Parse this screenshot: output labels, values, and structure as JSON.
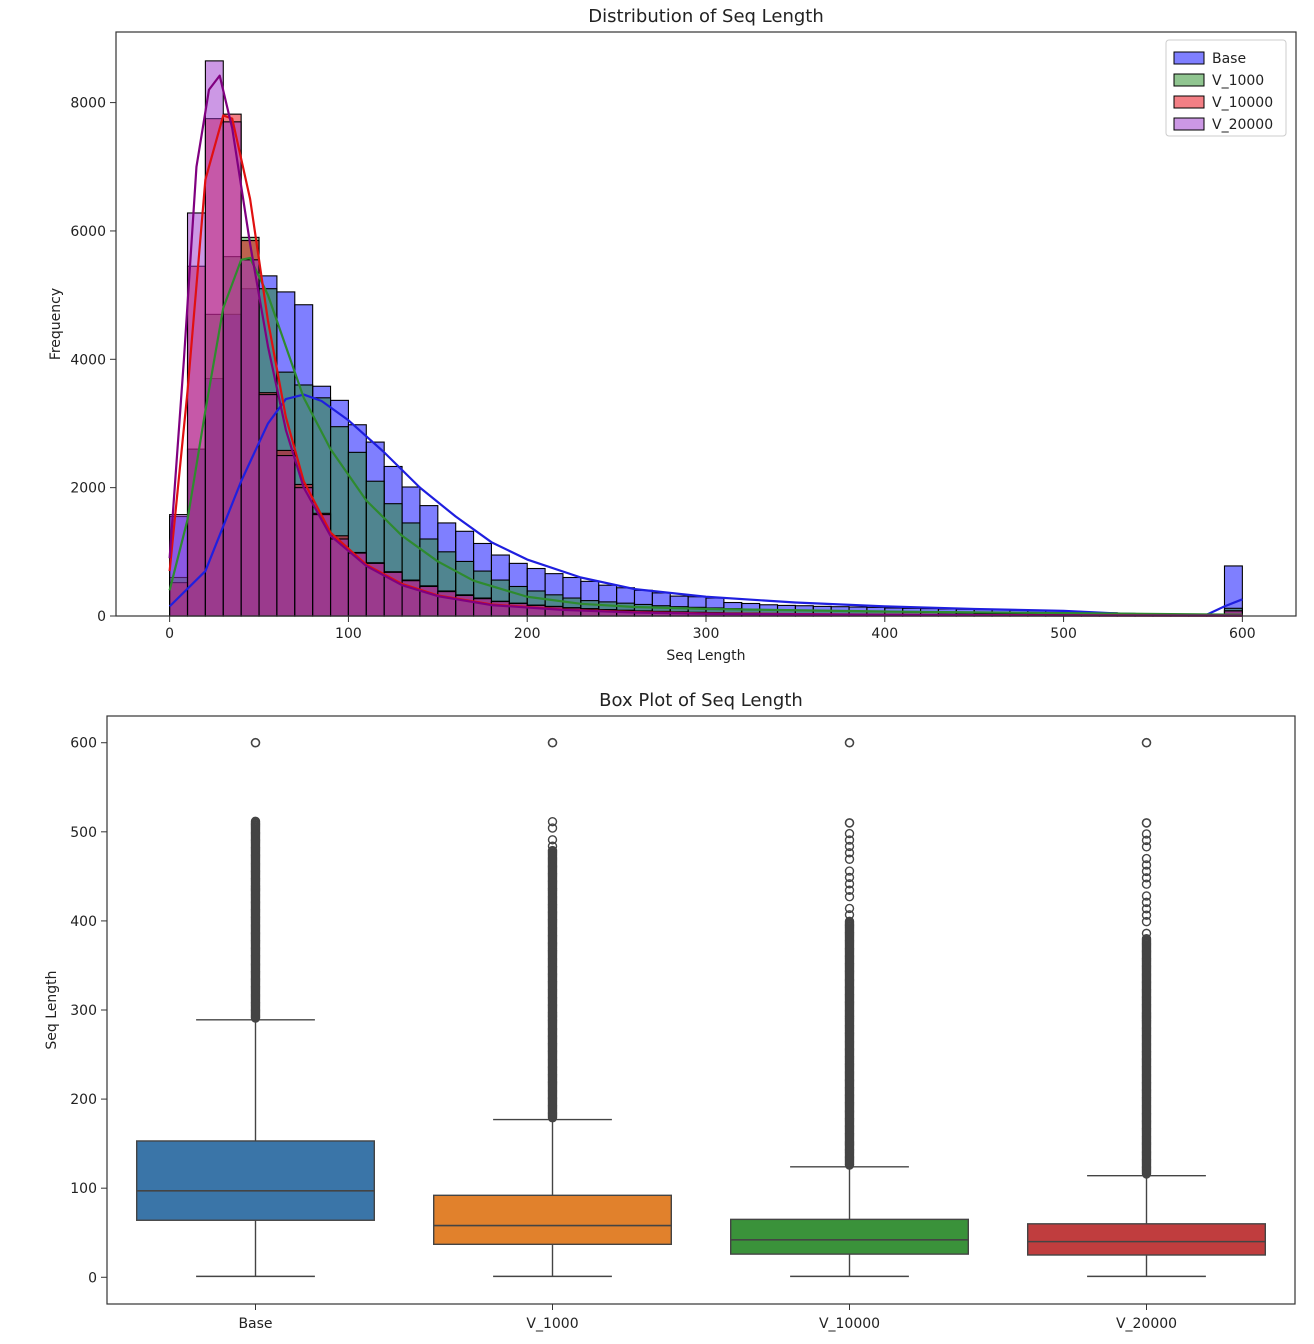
{
  "chart_data": [
    {
      "type": "histogram",
      "title": "Distribution of Seq Length",
      "xlabel": "Seq Length",
      "ylabel": "Frequency",
      "xlim": [
        -30,
        630
      ],
      "ylim": [
        0,
        9100
      ],
      "xticks": [
        0,
        100,
        200,
        300,
        400,
        500,
        600
      ],
      "yticks": [
        0,
        2000,
        4000,
        6000,
        8000
      ],
      "bin_width": 10,
      "bin_start": 0,
      "legend_position": "upper right",
      "series": [
        {
          "name": "Base",
          "color": "#0000ff",
          "line_color": "#1f1fdf",
          "values": [
            1550,
            2600,
            3700,
            4700,
            5100,
            5300,
            5050,
            4850,
            3580,
            3360,
            2980,
            2710,
            2330,
            2010,
            1720,
            1450,
            1320,
            1130,
            950,
            820,
            740,
            660,
            600,
            540,
            480,
            440,
            400,
            360,
            310,
            300,
            280,
            210,
            195,
            175,
            165,
            160,
            150,
            145,
            140,
            135,
            125,
            120,
            115,
            110,
            105,
            100,
            95,
            90,
            85,
            80,
            70,
            60,
            50,
            40,
            30,
            25,
            20,
            20,
            20,
            780
          ],
          "kde": [
            [
              0,
              150
            ],
            [
              20,
              700
            ],
            [
              40,
              2100
            ],
            [
              55,
              3000
            ],
            [
              65,
              3380
            ],
            [
              75,
              3450
            ],
            [
              85,
              3350
            ],
            [
              100,
              3050
            ],
            [
              120,
              2550
            ],
            [
              140,
              2000
            ],
            [
              160,
              1550
            ],
            [
              180,
              1150
            ],
            [
              200,
              880
            ],
            [
              230,
              600
            ],
            [
              260,
              420
            ],
            [
              300,
              300
            ],
            [
              350,
              210
            ],
            [
              400,
              150
            ],
            [
              450,
              110
            ],
            [
              500,
              80
            ],
            [
              530,
              40
            ],
            [
              560,
              10
            ],
            [
              580,
              20
            ],
            [
              590,
              150
            ],
            [
              600,
              260
            ]
          ]
        },
        {
          "name": "V_1000",
          "color": "#228b22",
          "line_color": "#2e8b2e",
          "values": [
            600,
            2600,
            4700,
            5600,
            5900,
            5100,
            3800,
            3600,
            3400,
            2950,
            2550,
            2100,
            1750,
            1450,
            1200,
            1000,
            850,
            700,
            560,
            460,
            390,
            330,
            280,
            240,
            220,
            200,
            180,
            160,
            145,
            135,
            125,
            115,
            105,
            100,
            95,
            90,
            85,
            80,
            75,
            70,
            65,
            60,
            55,
            50,
            45,
            40,
            38,
            35,
            32,
            30,
            25,
            20,
            18,
            15,
            12,
            10,
            10,
            10,
            10,
            120
          ],
          "kde": [
            [
              0,
              400
            ],
            [
              10,
              1500
            ],
            [
              20,
              3200
            ],
            [
              30,
              4800
            ],
            [
              40,
              5550
            ],
            [
              45,
              5580
            ],
            [
              55,
              5000
            ],
            [
              65,
              4200
            ],
            [
              75,
              3400
            ],
            [
              90,
              2600
            ],
            [
              110,
              1800
            ],
            [
              130,
              1250
            ],
            [
              150,
              850
            ],
            [
              170,
              550
            ],
            [
              200,
              300
            ],
            [
              230,
              190
            ],
            [
              260,
              140
            ],
            [
              300,
              110
            ],
            [
              350,
              90
            ],
            [
              400,
              70
            ],
            [
              500,
              45
            ],
            [
              600,
              20
            ]
          ]
        },
        {
          "name": "V_10000",
          "color": "#e8000b",
          "line_color": "#e01010",
          "values": [
            520,
            5450,
            7750,
            7820,
            5850,
            3480,
            2580,
            2050,
            1600,
            1250,
            990,
            830,
            690,
            560,
            470,
            390,
            330,
            280,
            230,
            200,
            170,
            150,
            130,
            115,
            100,
            90,
            80,
            72,
            65,
            58,
            52,
            48,
            44,
            40,
            36,
            33,
            30,
            28,
            25,
            22,
            20,
            18,
            16,
            14,
            12,
            10,
            10,
            10,
            10,
            10,
            8,
            8,
            8,
            8,
            8,
            6,
            6,
            6,
            6,
            80
          ],
          "kde": [
            [
              0,
              700
            ],
            [
              10,
              3500
            ],
            [
              20,
              6800
            ],
            [
              30,
              7800
            ],
            [
              35,
              7750
            ],
            [
              45,
              6500
            ],
            [
              55,
              4600
            ],
            [
              65,
              3100
            ],
            [
              75,
              2100
            ],
            [
              90,
              1300
            ],
            [
              110,
              800
            ],
            [
              130,
              500
            ],
            [
              150,
              320
            ],
            [
              180,
              180
            ],
            [
              220,
              100
            ],
            [
              260,
              60
            ],
            [
              300,
              40
            ],
            [
              400,
              20
            ],
            [
              500,
              10
            ],
            [
              600,
              5
            ]
          ]
        },
        {
          "name": "V_20000",
          "color": "#9932cc",
          "line_color": "#800080",
          "values": [
            1580,
            6280,
            8650,
            7700,
            5550,
            3450,
            2500,
            2000,
            1580,
            1200,
            980,
            820,
            680,
            550,
            460,
            380,
            320,
            270,
            225,
            195,
            165,
            145,
            125,
            110,
            95,
            85,
            75,
            68,
            60,
            54,
            48,
            44,
            40,
            36,
            33,
            30,
            27,
            25,
            22,
            20,
            18,
            16,
            14,
            12,
            10,
            10,
            10,
            10,
            8,
            8,
            8,
            8,
            6,
            6,
            6,
            6,
            5,
            5,
            5,
            80
          ],
          "kde": [
            [
              0,
              900
            ],
            [
              8,
              4000
            ],
            [
              15,
              7000
            ],
            [
              22,
              8200
            ],
            [
              28,
              8420
            ],
            [
              35,
              7600
            ],
            [
              45,
              5800
            ],
            [
              55,
              4200
            ],
            [
              65,
              2900
            ],
            [
              75,
              2000
            ],
            [
              90,
              1250
            ],
            [
              110,
              780
            ],
            [
              130,
              480
            ],
            [
              150,
              310
            ],
            [
              180,
              170
            ],
            [
              220,
              95
            ],
            [
              260,
              55
            ],
            [
              300,
              35
            ],
            [
              400,
              18
            ],
            [
              500,
              8
            ],
            [
              600,
              5
            ]
          ]
        }
      ]
    },
    {
      "type": "box",
      "title": "Box Plot of Seq Length",
      "xlabel": "",
      "ylabel": "Seq Length",
      "ylim": [
        -30,
        630
      ],
      "yticks": [
        0,
        100,
        200,
        300,
        400,
        500,
        600
      ],
      "boxes": [
        {
          "name": "Base",
          "color": "#3a75a8",
          "q1": 64,
          "median": 97,
          "q3": 153,
          "whisker_low": 1,
          "whisker_high": 289,
          "outlier_max": 512,
          "outlier_extra": [
            600
          ],
          "sparse_from": 512
        },
        {
          "name": "V_1000",
          "color": "#e1812c",
          "q1": 37,
          "median": 58,
          "q3": 92,
          "whisker_low": 1,
          "whisker_high": 177,
          "outlier_max": 512,
          "outlier_extra": [
            600
          ],
          "sparse_from": 480
        },
        {
          "name": "V_10000",
          "color": "#3a923a",
          "q1": 26,
          "median": 42,
          "q3": 65,
          "whisker_low": 1,
          "whisker_high": 124,
          "outlier_max": 500,
          "outlier_extra": [
            510,
            600
          ],
          "sparse_from": 400
        },
        {
          "name": "V_20000",
          "color": "#c03d3e",
          "q1": 25,
          "median": 40,
          "q3": 60,
          "whisker_low": 1,
          "whisker_high": 114,
          "outlier_max": 500,
          "outlier_extra": [
            510,
            600
          ],
          "sparse_from": 380
        }
      ]
    }
  ]
}
